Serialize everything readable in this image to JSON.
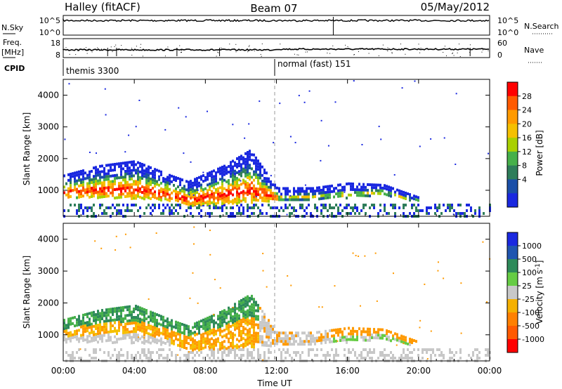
{
  "header": {
    "station": "Halley (fitACF)",
    "beam": "Beam 07",
    "date": "05/May/2012"
  },
  "strips": {
    "nsky_label": "N.Sky",
    "nsky_ticks": [
      "10^5",
      "10^0"
    ],
    "nsearch_label": "N.Search",
    "nsearch_ticks": [
      "10^5",
      "10^0"
    ],
    "freq_label": "Freq.",
    "freq_unit": "[MHz]",
    "freq_ticks": [
      "18",
      "8"
    ],
    "nave_label": "Nave",
    "nave_ticks": [
      "60",
      "0"
    ],
    "cpid_label": "CPID",
    "cpid_segments": [
      {
        "name": "themis 3300",
        "start_hour": 0
      },
      {
        "name": "normal (fast) 151",
        "start_hour": 12
      }
    ]
  },
  "chart_data": [
    {
      "type": "heatmap",
      "quantity": "Power",
      "ylabel": "Slant Range [km]",
      "ylim": [
        180,
        4500
      ],
      "xlim_hours": [
        0,
        24
      ],
      "yticks": [
        1000,
        2000,
        3000,
        4000
      ],
      "colorbar_label": "Power [dB]",
      "colorbar_ticks": [
        "28",
        "24",
        "20",
        "16",
        "12",
        "8",
        "4"
      ],
      "colorbar_colors": [
        "#ff0000",
        "#ff5a00",
        "#ff9a00",
        "#f5c000",
        "#a9d000",
        "#46b04a",
        "#2e7d5a",
        "#1a4fa8",
        "#1a28e0"
      ],
      "echo_band": [
        {
          "hour": 0,
          "lower_km": 800,
          "upper_km": 1500
        },
        {
          "hour": 2,
          "lower_km": 800,
          "upper_km": 1800
        },
        {
          "hour": 4,
          "lower_km": 780,
          "upper_km": 1950
        },
        {
          "hour": 6,
          "lower_km": 700,
          "upper_km": 1500
        },
        {
          "hour": 7,
          "lower_km": 550,
          "upper_km": 1300
        },
        {
          "hour": 9,
          "lower_km": 600,
          "upper_km": 1800
        },
        {
          "hour": 10.5,
          "lower_km": 650,
          "upper_km": 2300
        },
        {
          "hour": 12,
          "lower_km": 700,
          "upper_km": 1100
        },
        {
          "hour": 14,
          "lower_km": 750,
          "upper_km": 1100
        },
        {
          "hour": 16,
          "lower_km": 800,
          "upper_km": 1250
        },
        {
          "hour": 18,
          "lower_km": 900,
          "upper_km": 1200
        },
        {
          "hour": 20,
          "lower_km": 650,
          "upper_km": 800
        }
      ]
    },
    {
      "type": "heatmap",
      "quantity": "Velocity",
      "ylabel": "Slant Range [km]",
      "ylim": [
        180,
        4500
      ],
      "xlim_hours": [
        0,
        24
      ],
      "yticks": [
        1000,
        2000,
        3000,
        4000
      ],
      "colorbar_label": "Velocity [m s^-1]",
      "colorbar_ticks": [
        "1000",
        "500",
        "100",
        "25",
        "-25",
        "-100",
        "-500",
        "-1000"
      ],
      "colorbar_colors": [
        "#1a28e0",
        "#2055b0",
        "#2e8a5a",
        "#66cc44",
        "#c8c8c8",
        "#f5b000",
        "#ff8000",
        "#ff5a00",
        "#ff0000"
      ]
    }
  ],
  "xaxis": {
    "ticks": [
      "00:00",
      "04:00",
      "08:00",
      "12:00",
      "16:00",
      "20:00",
      "00:00"
    ],
    "label": "Time UT"
  }
}
